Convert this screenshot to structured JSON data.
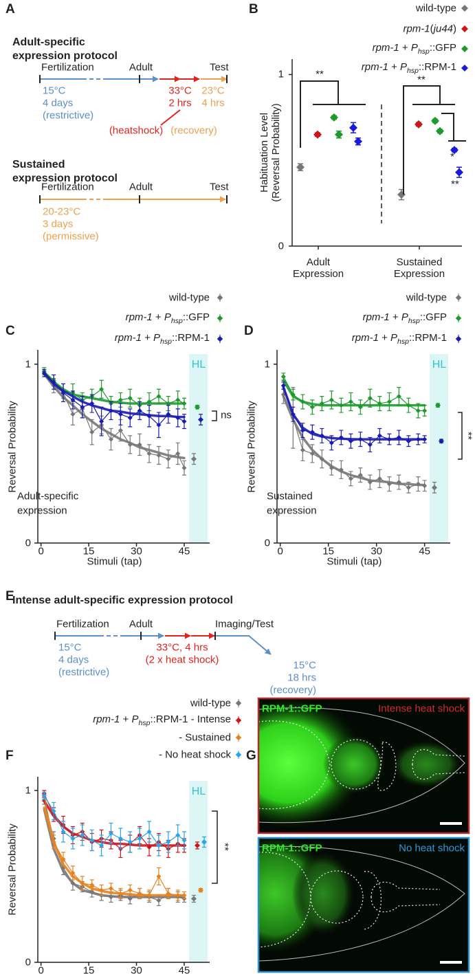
{
  "panel_labels": [
    "A",
    "B",
    "C",
    "D",
    "E",
    "F",
    "G"
  ],
  "protocols": [
    {
      "title_lines": [
        "Adult-specific",
        "expression protocol"
      ],
      "stages": [
        "Fertilization",
        "Adult",
        "Test"
      ],
      "notes": [
        {
          "lines": [
            "15°C",
            "4 days",
            "(restrictive)"
          ],
          "color": "#5b8fc9"
        },
        {
          "lines": [
            "33°C",
            "2 hrs"
          ],
          "color": "#e3221b"
        },
        {
          "lines": [
            "23°C",
            "4 hrs"
          ],
          "color": "#f0a04b"
        },
        {
          "lines": [
            "(heatshock)"
          ],
          "color": "#e3221b"
        },
        {
          "lines": [
            "(recovery)"
          ],
          "color": "#f0a04b"
        }
      ]
    },
    {
      "title_lines": [
        "Sustained",
        "expression protocol"
      ],
      "stages": [
        "Fertilization",
        "Adult",
        "Test"
      ],
      "notes": [
        {
          "lines": [
            "20-23°C",
            "3 days",
            "(permissive)"
          ],
          "color": "#f0a04b"
        }
      ]
    },
    {
      "title_lines": [
        "Intense adult-specific expression protocol"
      ],
      "stages": [
        "Fertilization",
        "Adult",
        "Imaging/Test"
      ],
      "notes": [
        {
          "lines": [
            "15°C",
            "4 days",
            "(restrictive)"
          ],
          "color": "#5b8fc9"
        },
        {
          "lines": [
            "33°C, 4 hrs",
            "(2 x heat shock)"
          ],
          "color": "#e3221b"
        },
        {
          "lines": [
            "15°C",
            "18 hrs",
            "(recovery)"
          ],
          "color": "#5b8fc9"
        }
      ]
    }
  ],
  "chart_data": [
    {
      "type": "dot",
      "y_label": "Habituation Level (Reversal Probability)",
      "categories": [
        "Adult Expression",
        "Sustained Expression"
      ],
      "series": [
        {
          "name": "wild-type",
          "color": "#777777",
          "values": [
            [
              0.46
            ],
            [
              0.3
            ]
          ],
          "errors": [
            [
              0.02
            ],
            [
              0.03
            ]
          ]
        },
        {
          "name": "rpm-1(ju44)",
          "color": "#d0151a",
          "values": [
            [
              0.65
            ],
            [
              0.71
            ]
          ],
          "errors": [
            [
              0.01
            ],
            [
              0.01
            ]
          ]
        },
        {
          "name": "rpm-1 + Phsp::GFP",
          "color": "#1c9a2c",
          "values": [
            [
              0.75,
              0.65
            ],
            [
              0.73,
              0.67
            ]
          ],
          "errors": [
            [
              0.01,
              0.02
            ],
            [
              0.01,
              0.01
            ]
          ]
        },
        {
          "name": "rpm-1 + Phsp::RPM-1",
          "color": "#1a1adc",
          "values": [
            [
              0.69,
              0.61
            ],
            [
              0.56,
              0.43
            ]
          ],
          "errors": [
            [
              0.03,
              0.02
            ],
            [
              0.01,
              0.03
            ]
          ]
        }
      ],
      "ylim": [
        0,
        1.09
      ],
      "yticks": [
        0,
        1
      ],
      "annotations": [
        "**",
        "**",
        "*",
        "**"
      ],
      "legend": "top-right"
    },
    {
      "type": "line",
      "x_label": "Stimuli (tap)",
      "y_label": "Reversal Probability",
      "note_lines": [
        "Adult-specific",
        "expression"
      ],
      "hl_label": "HL",
      "annotation": "ns",
      "x": [
        1,
        4,
        7,
        10,
        13,
        16,
        19,
        22,
        25,
        28,
        31,
        34,
        37,
        40,
        43,
        45
      ],
      "series": [
        {
          "name": "wild-type",
          "color": "#777777",
          "values": [
            0.96,
            0.88,
            0.84,
            0.72,
            0.75,
            0.62,
            0.66,
            0.58,
            0.63,
            0.55,
            0.55,
            0.5,
            0.49,
            0.47,
            0.5,
            0.42
          ],
          "errors": [
            0.02,
            0.04,
            0.05,
            0.06,
            0.05,
            0.07,
            0.05,
            0.06,
            0.06,
            0.05,
            0.06,
            0.05,
            0.05,
            0.05,
            0.06,
            0.04
          ],
          "fit": [
            0.945,
            0.875,
            0.815,
            0.77,
            0.72,
            0.68,
            0.64,
            0.61,
            0.58,
            0.56,
            0.535,
            0.52,
            0.505,
            0.49,
            0.48,
            0.475
          ],
          "hl_value": 0.47,
          "hl_error": 0.03
        },
        {
          "name": "rpm-1 + Phsp::GFP",
          "color": "#1c9a2c",
          "values": [
            0.96,
            0.91,
            0.85,
            0.84,
            0.8,
            0.82,
            0.86,
            0.78,
            0.8,
            0.81,
            0.77,
            0.79,
            0.82,
            0.78,
            0.8,
            0.78
          ],
          "errors": [
            0.02,
            0.03,
            0.04,
            0.05,
            0.04,
            0.04,
            0.05,
            0.04,
            0.04,
            0.05,
            0.04,
            0.05,
            0.04,
            0.04,
            0.05,
            0.03
          ],
          "fit": [
            0.95,
            0.9,
            0.86,
            0.83,
            0.82,
            0.81,
            0.8,
            0.79,
            0.785,
            0.78,
            0.78,
            0.78,
            0.78,
            0.78,
            0.78,
            0.78
          ],
          "hl_value": 0.76,
          "hl_error": 0.01
        },
        {
          "name": "rpm-1 + Phsp::RPM-1",
          "color": "#1a1ab4",
          "values": [
            0.95,
            0.9,
            0.84,
            0.8,
            0.76,
            0.78,
            0.68,
            0.74,
            0.72,
            0.7,
            0.74,
            0.71,
            0.66,
            0.72,
            0.7,
            0.68
          ],
          "errors": [
            0.02,
            0.04,
            0.05,
            0.05,
            0.06,
            0.05,
            0.08,
            0.05,
            0.06,
            0.05,
            0.05,
            0.06,
            0.07,
            0.05,
            0.05,
            0.04
          ],
          "fit": [
            0.95,
            0.89,
            0.85,
            0.82,
            0.79,
            0.77,
            0.755,
            0.74,
            0.735,
            0.725,
            0.72,
            0.715,
            0.71,
            0.71,
            0.705,
            0.705
          ],
          "hl_value": 0.69,
          "hl_error": 0.03
        }
      ],
      "xlim": [
        -1,
        53
      ],
      "xticks": [
        0,
        15,
        30,
        45
      ],
      "ylim": [
        0,
        1.08
      ],
      "yticks": [
        0,
        1
      ],
      "legend": "top-right"
    },
    {
      "type": "line",
      "x_label": "Stimuli (tap)",
      "y_label": "Reversal Probability",
      "note_lines": [
        "Sustained",
        "expression"
      ],
      "hl_label": "HL",
      "annotation": "**",
      "x": [
        1,
        4,
        7,
        10,
        13,
        16,
        19,
        22,
        25,
        28,
        31,
        34,
        37,
        40,
        43,
        45
      ],
      "series": [
        {
          "name": "wild-type",
          "color": "#777777",
          "values": [
            0.83,
            0.7,
            0.52,
            0.5,
            0.47,
            0.42,
            0.41,
            0.36,
            0.38,
            0.34,
            0.36,
            0.33,
            0.34,
            0.31,
            0.33,
            0.32
          ],
          "errors": [
            0.05,
            0.17,
            0.06,
            0.05,
            0.05,
            0.04,
            0.05,
            0.04,
            0.04,
            0.04,
            0.05,
            0.04,
            0.04,
            0.03,
            0.04,
            0.03
          ],
          "fit": [
            0.82,
            0.69,
            0.59,
            0.52,
            0.47,
            0.43,
            0.4,
            0.38,
            0.365,
            0.35,
            0.345,
            0.34,
            0.33,
            0.33,
            0.325,
            0.325
          ],
          "hl_value": 0.31,
          "hl_error": 0.03
        },
        {
          "name": "rpm-1 + Phsp::GFP",
          "color": "#1c9a2c",
          "values": [
            0.93,
            0.83,
            0.79,
            0.76,
            0.78,
            0.8,
            0.77,
            0.79,
            0.76,
            0.81,
            0.78,
            0.79,
            0.82,
            0.77,
            0.74,
            0.74
          ],
          "errors": [
            0.02,
            0.03,
            0.04,
            0.04,
            0.04,
            0.05,
            0.04,
            0.05,
            0.04,
            0.05,
            0.04,
            0.05,
            0.05,
            0.04,
            0.04,
            0.03
          ],
          "fit": [
            0.91,
            0.82,
            0.79,
            0.777,
            0.77,
            0.77,
            0.77,
            0.77,
            0.77,
            0.77,
            0.77,
            0.77,
            0.77,
            0.77,
            0.77,
            0.77
          ],
          "hl_value": 0.77,
          "hl_error": 0.01
        },
        {
          "name": "rpm-1 + Phsp::RPM-1",
          "color": "#1a1ab4",
          "values": [
            0.88,
            0.72,
            0.63,
            0.62,
            0.6,
            0.56,
            0.59,
            0.57,
            0.58,
            0.55,
            0.6,
            0.58,
            0.59,
            0.57,
            0.58,
            0.58
          ],
          "errors": [
            0.02,
            0.04,
            0.04,
            0.04,
            0.04,
            0.04,
            0.04,
            0.04,
            0.04,
            0.04,
            0.04,
            0.03,
            0.04,
            0.03,
            0.03,
            0.02
          ],
          "fit": [
            0.87,
            0.72,
            0.645,
            0.61,
            0.595,
            0.587,
            0.583,
            0.581,
            0.58,
            0.58,
            0.58,
            0.58,
            0.58,
            0.58,
            0.58,
            0.58
          ],
          "hl_value": 0.57,
          "hl_error": 0.01
        }
      ],
      "xlim": [
        -1,
        53
      ],
      "xticks": [
        0,
        15,
        30,
        45
      ],
      "ylim": [
        0,
        1.08
      ],
      "yticks": [
        0,
        1
      ],
      "legend": "top-right"
    },
    {
      "type": "line",
      "x_label": "Stimuli (tap)",
      "y_label": "Reversal Probability",
      "hl_label": "HL",
      "annotation": "**",
      "x": [
        1,
        4,
        7,
        10,
        13,
        16,
        19,
        22,
        25,
        28,
        31,
        34,
        37,
        40,
        43,
        45
      ],
      "series": [
        {
          "name": "wild-type",
          "color": "#777777",
          "values": [
            0.94,
            0.72,
            0.55,
            0.46,
            0.44,
            0.41,
            0.39,
            0.38,
            0.39,
            0.37,
            0.4,
            0.38,
            0.36,
            0.4,
            0.38,
            0.37
          ],
          "errors": [
            0.02,
            0.04,
            0.04,
            0.04,
            0.03,
            0.03,
            0.03,
            0.03,
            0.03,
            0.03,
            0.03,
            0.03,
            0.03,
            0.03,
            0.03,
            0.02
          ],
          "fit": [
            0.89,
            0.66,
            0.53,
            0.46,
            0.42,
            0.405,
            0.39,
            0.385,
            0.38,
            0.38,
            0.38,
            0.38,
            0.38,
            0.38,
            0.38,
            0.38
          ],
          "hl_value": 0.37,
          "hl_error": 0.02
        },
        {
          "name": "rpm-1 + Phsp::RPM-1 - Intense",
          "color": "#c8161d",
          "values": [
            0.98,
            0.86,
            0.8,
            0.74,
            0.76,
            0.7,
            0.72,
            0.71,
            0.66,
            0.69,
            0.74,
            0.67,
            0.7,
            0.66,
            0.69,
            0.68
          ],
          "errors": [
            0.02,
            0.04,
            0.05,
            0.05,
            0.05,
            0.05,
            0.05,
            0.05,
            0.05,
            0.05,
            0.05,
            0.05,
            0.05,
            0.05,
            0.05,
            0.04
          ],
          "fit": [
            0.94,
            0.85,
            0.79,
            0.75,
            0.73,
            0.71,
            0.7,
            0.69,
            0.69,
            0.685,
            0.68,
            0.68,
            0.68,
            0.68,
            0.68,
            0.68
          ],
          "hl_value": 0.68,
          "hl_error": 0.02
        },
        {
          "name": "- Sustained",
          "color": "#e8821e",
          "values": [
            0.97,
            0.7,
            0.6,
            0.52,
            0.46,
            0.45,
            0.42,
            0.43,
            0.4,
            0.42,
            0.4,
            0.39,
            0.5,
            0.4,
            0.39,
            0.39
          ],
          "errors": [
            0.02,
            0.04,
            0.04,
            0.04,
            0.04,
            0.03,
            0.03,
            0.03,
            0.03,
            0.03,
            0.03,
            0.03,
            0.05,
            0.03,
            0.03,
            0.02
          ],
          "fit": [
            0.9,
            0.7,
            0.57,
            0.5,
            0.46,
            0.43,
            0.415,
            0.405,
            0.4,
            0.395,
            0.39,
            0.39,
            0.39,
            0.39,
            0.39,
            0.39
          ],
          "hl_value": 0.42,
          "hl_error": 0.01
        },
        {
          "name": "- No heat shock",
          "color": "#2aa4e8",
          "values": [
            0.97,
            0.88,
            0.76,
            0.72,
            0.74,
            0.71,
            0.68,
            0.75,
            0.72,
            0.7,
            0.72,
            0.76,
            0.68,
            0.7,
            0.74,
            0.71
          ],
          "errors": [
            0.02,
            0.05,
            0.06,
            0.06,
            0.06,
            0.06,
            0.06,
            0.06,
            0.06,
            0.06,
            0.06,
            0.06,
            0.06,
            0.06,
            0.06,
            0.05
          ],
          "hl_value": 0.7,
          "hl_error": 0.03
        }
      ],
      "xlim": [
        -1,
        53
      ],
      "xticks": [
        0,
        15,
        30,
        45
      ],
      "ylim": [
        0,
        1.08
      ],
      "yticks": [
        0,
        1
      ],
      "legend": "top-right"
    }
  ],
  "micrographs": [
    {
      "label": "RPM-1::GFP",
      "condition": "Intense heat shock",
      "condition_color": "#d42a2a",
      "border": "#b32a2a"
    },
    {
      "label": "RPM-1::GFP",
      "condition": "No heat shock",
      "condition_color": "#2a9ae0",
      "border": "#2a8fd0"
    }
  ]
}
